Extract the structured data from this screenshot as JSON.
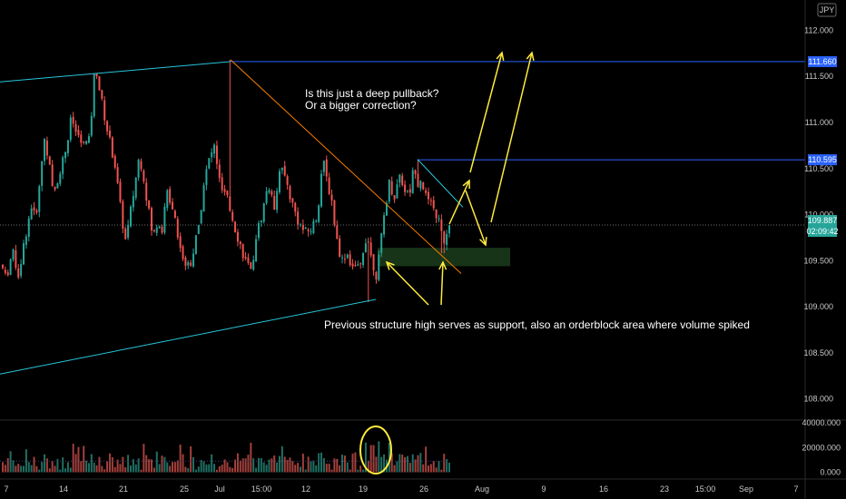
{
  "chart_data": {
    "type": "candlestick",
    "currency": "JPY",
    "price_axis": {
      "ylim": [
        107.8,
        112.25
      ],
      "ticks": [
        "112.000",
        "111.500",
        "111.000",
        "110.500",
        "110.000",
        "109.500",
        "109.000",
        "108.500",
        "108.000"
      ]
    },
    "volume_axis": {
      "ylim": [
        -4000,
        40000
      ],
      "ticks": [
        "40000.000",
        "20000.000",
        "0.000"
      ]
    },
    "x_axis": {
      "ticks": [
        "7",
        "14",
        "21",
        "25",
        "Jul",
        "15:00",
        "12",
        "19",
        "26",
        "Aug",
        "9",
        "16",
        "23",
        "15:00",
        "Sep",
        "7"
      ]
    },
    "price_tags": [
      {
        "label": "111.660",
        "value": 111.66,
        "color": "#2962ff"
      },
      {
        "label": "110.595",
        "value": 110.595,
        "color": "#2962ff"
      },
      {
        "label": "109.887",
        "value": 109.887,
        "color": "#26a69a"
      },
      {
        "label": "02:09:42",
        "value": 109.887,
        "color": "#26a69a"
      }
    ],
    "horizontal_levels": [
      {
        "value": 111.66,
        "color": "#2962ff"
      },
      {
        "value": 110.595,
        "color": "#2962ff"
      },
      {
        "value": 109.887,
        "color": "#6f6f6f"
      }
    ],
    "candles": {
      "count": 172,
      "anchors": [
        [
          0,
          109.55
        ],
        [
          8,
          109.3
        ],
        [
          15,
          109.6
        ],
        [
          22,
          109.35
        ],
        [
          30,
          109.8
        ],
        [
          36,
          110.1
        ],
        [
          40,
          109.95
        ],
        [
          45,
          110.3
        ],
        [
          50,
          110.85
        ],
        [
          55,
          110.6
        ],
        [
          60,
          110.2
        ],
        [
          68,
          110.5
        ],
        [
          75,
          110.75
        ],
        [
          80,
          111.05
        ],
        [
          85,
          110.9
        ],
        [
          93,
          110.75
        ],
        [
          100,
          110.8
        ],
        [
          106,
          111.6
        ],
        [
          108,
          111.55
        ],
        [
          112,
          111.3
        ],
        [
          120,
          110.9
        ],
        [
          128,
          110.55
        ],
        [
          135,
          110.0
        ],
        [
          140,
          109.7
        ],
        [
          148,
          110.2
        ],
        [
          155,
          110.65
        ],
        [
          160,
          110.4
        ],
        [
          165,
          110.05
        ],
        [
          170,
          109.75
        ],
        [
          176,
          109.95
        ],
        [
          180,
          109.85
        ],
        [
          186,
          110.25
        ],
        [
          193,
          110.05
        ],
        [
          200,
          109.65
        ],
        [
          206,
          109.45
        ],
        [
          212,
          109.5
        ],
        [
          220,
          109.85
        ],
        [
          226,
          110.35
        ],
        [
          232,
          110.6
        ],
        [
          238,
          110.75
        ],
        [
          244,
          110.3
        ],
        [
          252,
          110.15
        ],
        [
          258,
          109.95
        ],
        [
          265,
          109.7
        ],
        [
          272,
          109.5
        ],
        [
          278,
          109.35
        ],
        [
          283,
          109.75
        ],
        [
          290,
          110.0
        ],
        [
          297,
          110.35
        ],
        [
          303,
          110.05
        ],
        [
          310,
          110.55
        ],
        [
          317,
          110.35
        ],
        [
          324,
          110.1
        ],
        [
          331,
          109.9
        ],
        [
          338,
          109.8
        ],
        [
          345,
          109.85
        ],
        [
          351,
          110.0
        ],
        [
          357,
          110.6
        ],
        [
          361,
          110.4
        ],
        [
          367,
          110.15
        ],
        [
          372,
          109.75
        ],
        [
          378,
          109.5
        ],
        [
          383,
          109.6
        ],
        [
          389,
          109.45
        ],
        [
          394,
          109.4
        ],
        [
          398,
          109.42
        ],
        [
          403,
          109.7
        ],
        [
          406,
          109.8
        ],
        [
          410,
          109.55
        ],
        [
          416,
          109.35
        ],
        [
          420,
          109.6
        ],
        [
          424,
          109.95
        ],
        [
          430,
          110.35
        ],
        [
          436,
          110.2
        ],
        [
          442,
          110.45
        ],
        [
          446,
          110.3
        ],
        [
          452,
          110.2
        ],
        [
          458,
          110.55
        ],
        [
          462,
          110.35
        ],
        [
          466,
          110.4
        ],
        [
          470,
          110.2
        ],
        [
          476,
          110.1
        ],
        [
          482,
          110.0
        ],
        [
          486,
          109.9
        ],
        [
          490,
          109.65
        ],
        [
          495,
          109.85
        ]
      ],
      "notable_wicks": [
        {
          "x": 254,
          "high": 111.68
        },
        {
          "x": 406,
          "low": 109.05
        },
        {
          "x": 460,
          "high": 110.6
        },
        {
          "x": 488,
          "low": 109.58
        }
      ]
    },
    "volume": {
      "typical_range": [
        2000,
        16000
      ],
      "spike_values": [
        24000,
        22000,
        25000,
        24000
      ]
    },
    "annotations": [
      {
        "text": "Is this just a deep pullback?",
        "color": "#ffffff"
      },
      {
        "text": "Or a bigger correction?",
        "color": "#ffffff"
      },
      {
        "text": "Previous structure high serves as support, also an orderblock area where volume spiked",
        "color": "#ffffff"
      }
    ],
    "drawings": [
      {
        "kind": "trendline",
        "color": "#26c6da",
        "from": [
          0,
          111.44
        ],
        "to": [
          254,
          111.66
        ]
      },
      {
        "kind": "trendline",
        "color": "#26c6da",
        "from": [
          0,
          108.27
        ],
        "to": [
          414,
          109.08
        ]
      },
      {
        "kind": "trendline",
        "color": "#f57c00",
        "from": [
          254,
          111.68
        ],
        "to": [
          508,
          109.36
        ]
      },
      {
        "kind": "trendline",
        "color": "#26c6da",
        "from": [
          460,
          110.6
        ],
        "to": [
          510,
          110.08
        ]
      },
      {
        "kind": "zone",
        "color": "#1b3a1b",
        "from": [
          416,
          109.64
        ],
        "to": [
          562,
          109.44
        ]
      },
      {
        "kind": "circle",
        "color": "#ffeb3b",
        "on": "volume"
      },
      {
        "kind": "arrows",
        "color": "#ffeb3b"
      }
    ],
    "legend": "none",
    "grid": false
  }
}
